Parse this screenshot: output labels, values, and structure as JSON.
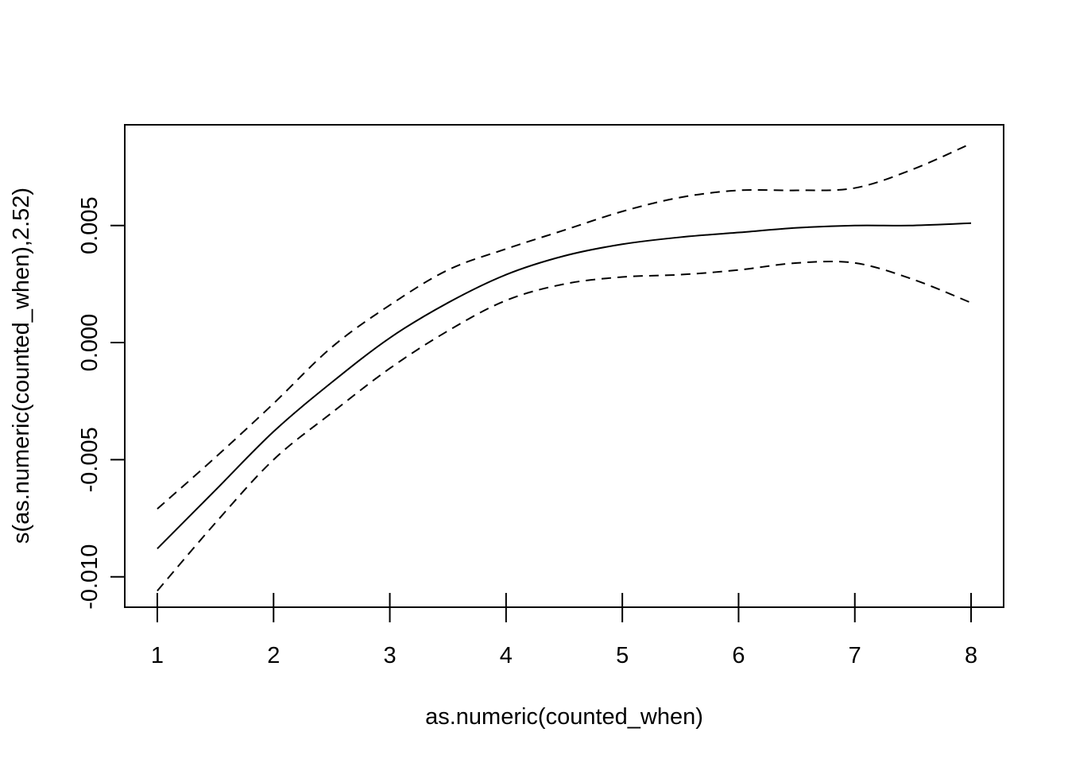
{
  "chart_data": {
    "type": "line",
    "title": "",
    "xlabel": "as.numeric(counted_when)",
    "ylabel": "s(as.numeric(counted_when),2.52)",
    "xlim": [
      0.72,
      8.28
    ],
    "ylim": [
      -0.0113,
      0.0093
    ],
    "x_ticks": [
      1,
      2,
      3,
      4,
      5,
      6,
      7,
      8
    ],
    "x_tick_labels": [
      "1",
      "2",
      "3",
      "4",
      "5",
      "6",
      "7",
      "8"
    ],
    "y_ticks": [
      -0.01,
      -0.005,
      0.0,
      0.005
    ],
    "y_tick_labels": [
      "-0.010",
      "-0.005",
      "0.000",
      "0.005"
    ],
    "grid": false,
    "legend": "none",
    "x": [
      1,
      1.5,
      2,
      2.5,
      3,
      3.5,
      4,
      4.5,
      5,
      5.5,
      6,
      6.5,
      7,
      7.5,
      8
    ],
    "series": [
      {
        "style": "solid",
        "values": [
          -0.0088,
          -0.0063,
          -0.0038,
          -0.0017,
          0.0002,
          0.0017,
          0.0029,
          0.0037,
          0.0042,
          0.0045,
          0.0047,
          0.0049,
          0.005,
          0.005,
          0.0051
        ]
      },
      {
        "style": "dashed",
        "values": [
          -0.0071,
          -0.0049,
          -0.0026,
          -0.0002,
          0.0016,
          0.0031,
          0.004,
          0.0048,
          0.0056,
          0.0062,
          0.0065,
          0.0065,
          0.0066,
          0.0074,
          0.0085
        ]
      },
      {
        "style": "dashed",
        "values": [
          -0.0106,
          -0.0077,
          -0.005,
          -0.003,
          -0.0011,
          0.0005,
          0.0018,
          0.0025,
          0.0028,
          0.0029,
          0.0031,
          0.0034,
          0.0034,
          0.0027,
          0.0017
        ]
      }
    ]
  }
}
